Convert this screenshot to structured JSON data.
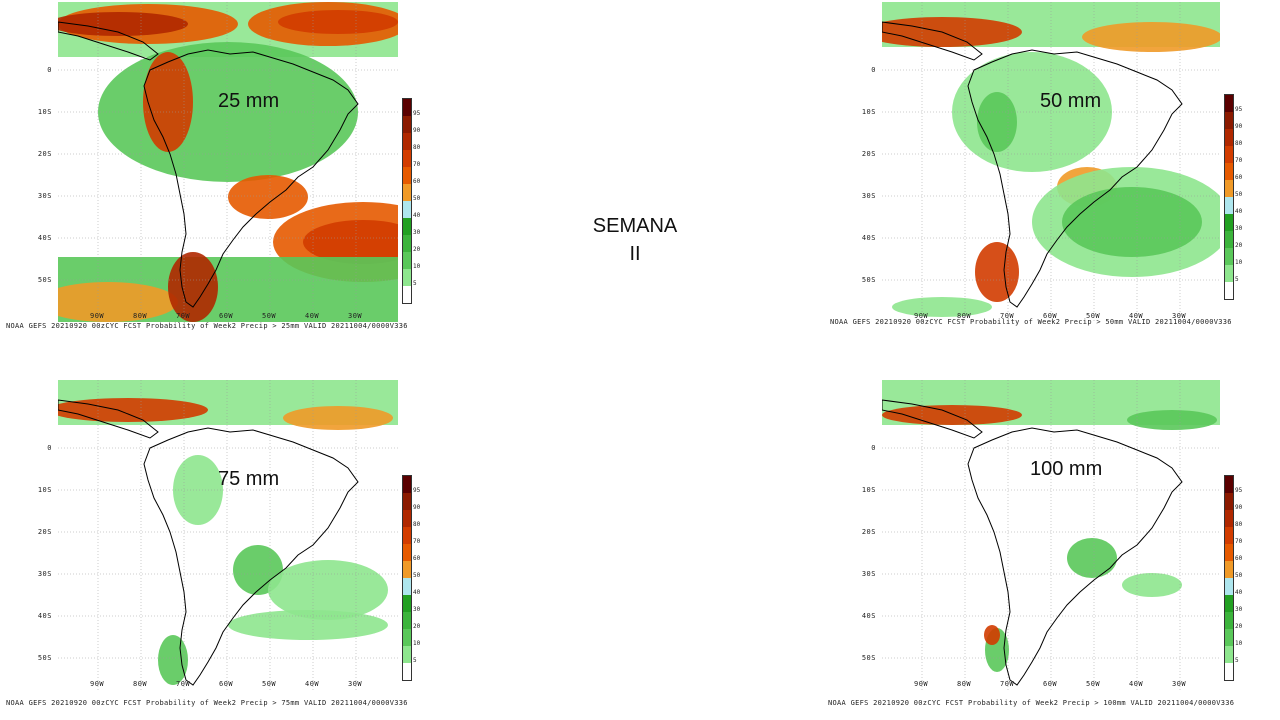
{
  "title": {
    "line1": "SEMANA",
    "line2": "II"
  },
  "colorbar": {
    "labels": [
      "95",
      "90",
      "80",
      "70",
      "60",
      "50",
      "40",
      "30",
      "20",
      "10",
      "5"
    ],
    "colors": [
      "#5a0000",
      "#8b1a00",
      "#b02800",
      "#d23c00",
      "#e65a00",
      "#f09a28",
      "#aee6ee",
      "#22a022",
      "#3cb43c",
      "#5ac85a",
      "#8ee68e",
      "#ffffff"
    ]
  },
  "lat_labels": [
    "0",
    "10S",
    "20S",
    "30S",
    "40S",
    "50S"
  ],
  "lon_labels": [
    "90W",
    "80W",
    "70W",
    "60W",
    "50W",
    "40W",
    "30W"
  ],
  "panels": [
    {
      "threshold": "25 mm",
      "caption": "NOAA GEFS 20210920 00zCYC FCST Probability of Week2 Precip > 25mm  VALID 20211004/0000V336"
    },
    {
      "threshold": "50 mm",
      "caption": "NOAA GEFS 20210920 00zCYC FCST Probability of Week2 Precip > 50mm  VALID 20211004/0000V336"
    },
    {
      "threshold": "75 mm",
      "caption": "NOAA GEFS 20210920 00zCYC FCST Probability of Week2 Precip > 75mm  VALID 20211004/0000V336"
    },
    {
      "threshold": "100 mm",
      "caption": "NOAA GEFS 20210920 00zCYC FCST Probability of Week2 Precip > 100mm  VALID 20211004/0000V336"
    }
  ]
}
